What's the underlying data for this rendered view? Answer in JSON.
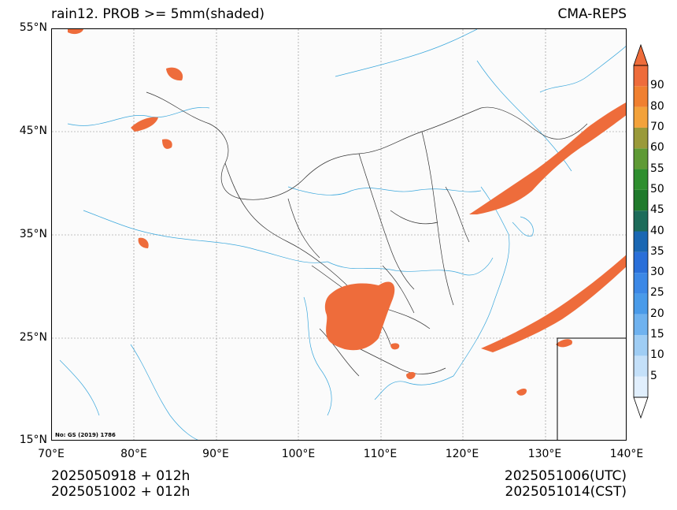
{
  "title": {
    "left": "rain12. PROB >= 5mm(shaded)",
    "right": "CMA-REPS"
  },
  "map_note": "No: GS (2019) 1786",
  "lat_ticks": [
    "55°N",
    "45°N",
    "35°N",
    "25°N",
    "15°N"
  ],
  "lon_ticks": [
    "70°E",
    "80°E",
    "90°E",
    "100°E",
    "110°E",
    "120°E",
    "130°E",
    "140°E"
  ],
  "colorbar": {
    "levels": [
      "5",
      "10",
      "15",
      "20",
      "25",
      "30",
      "35",
      "40",
      "45",
      "50",
      "55",
      "60",
      "70",
      "80",
      "90"
    ],
    "colors": [
      "#e1effd",
      "#c4e0f9",
      "#9fcdf4",
      "#6fb2ef",
      "#4a9be9",
      "#3c88e6",
      "#2a6fd9",
      "#1a67b3",
      "#1d6b5a",
      "#207a2c",
      "#2f8f2f",
      "#5f9a35",
      "#9a9a3a",
      "#f3a23b",
      "#f08030",
      "#ee6c3b"
    ],
    "under_color": "#ffffff",
    "over_color": "#ee6c3b"
  },
  "footer": {
    "left_line1": "2025050918  +  012h",
    "left_line2": "2025051002  +  012h",
    "right_line1": "2025051006(UTC)",
    "right_line2": "2025051014(CST)"
  },
  "colors": {
    "shade": "#ee6c3b",
    "river": "#3aa7dc",
    "border": "#333333",
    "grid": "#888888"
  }
}
